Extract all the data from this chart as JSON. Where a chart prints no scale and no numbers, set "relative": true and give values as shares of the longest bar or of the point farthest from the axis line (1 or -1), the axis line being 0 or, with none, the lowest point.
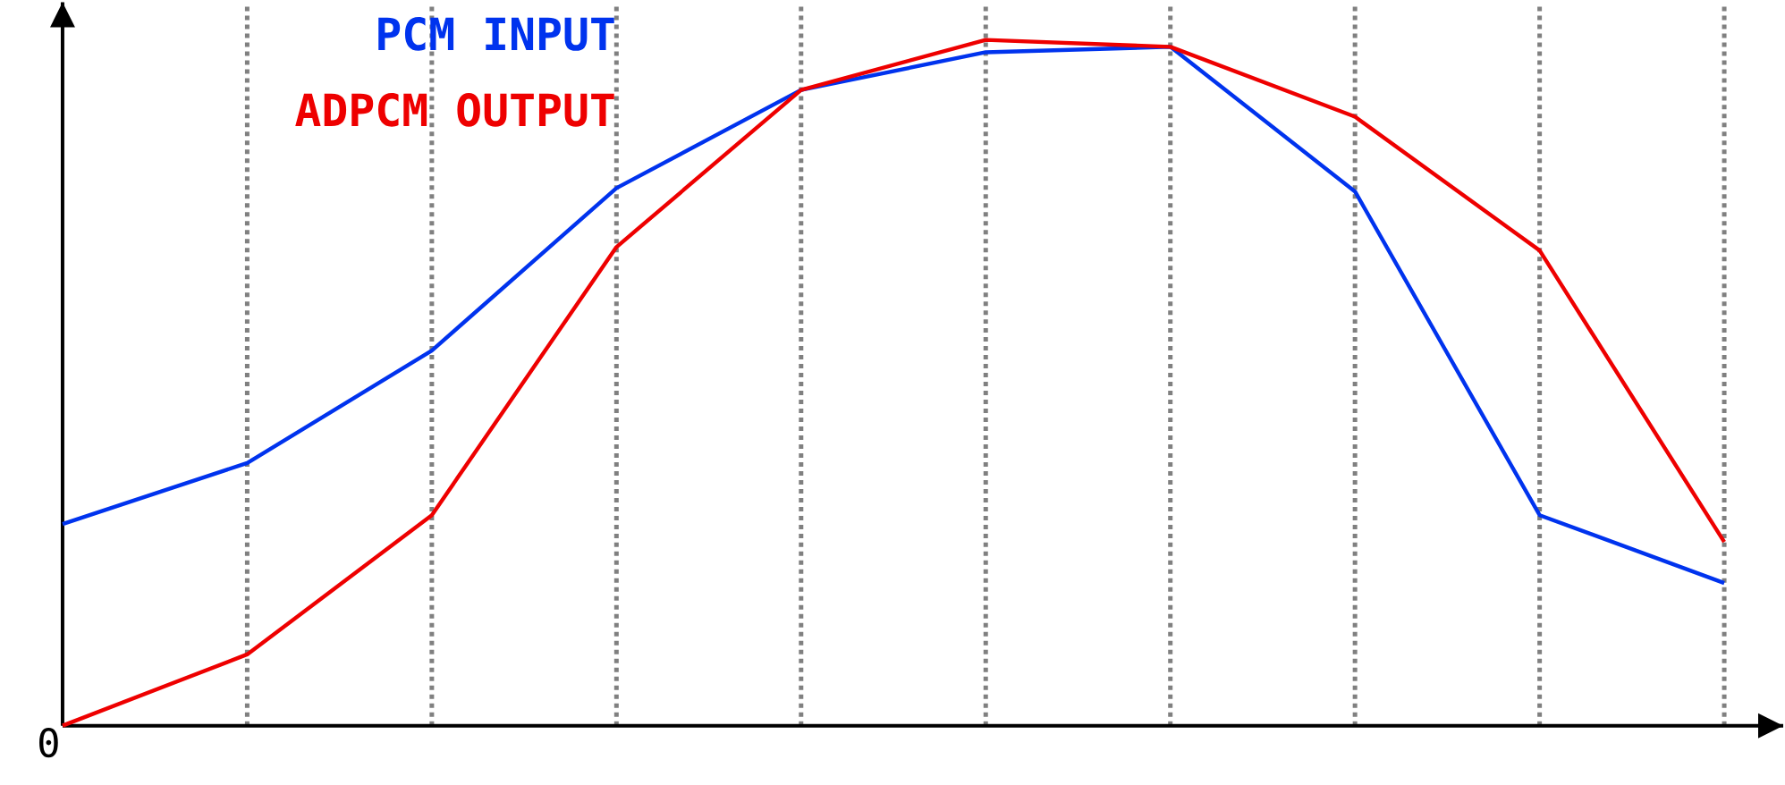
{
  "chart_data": {
    "type": "line",
    "relative": true,
    "categories": [
      null,
      null,
      null,
      null,
      null,
      null,
      null,
      null,
      null,
      null
    ],
    "series": [
      {
        "name": "PCM INPUT",
        "color": "#0033ee",
        "values": [
          0.294,
          0.383,
          0.547,
          0.784,
          0.927,
          0.982,
          0.99,
          0.779,
          0.307,
          0.208
        ]
      },
      {
        "name": "ADPCM OUTPUT",
        "color": "#ee0000",
        "values": [
          0,
          0.104,
          0.307,
          0.698,
          0.927,
          1,
          0.99,
          0.888,
          0.693,
          0.268
        ]
      }
    ],
    "grid": "x",
    "legend": "top left",
    "marker": "none",
    "line_style": "solid",
    "annotations": [
      "0"
    ]
  }
}
